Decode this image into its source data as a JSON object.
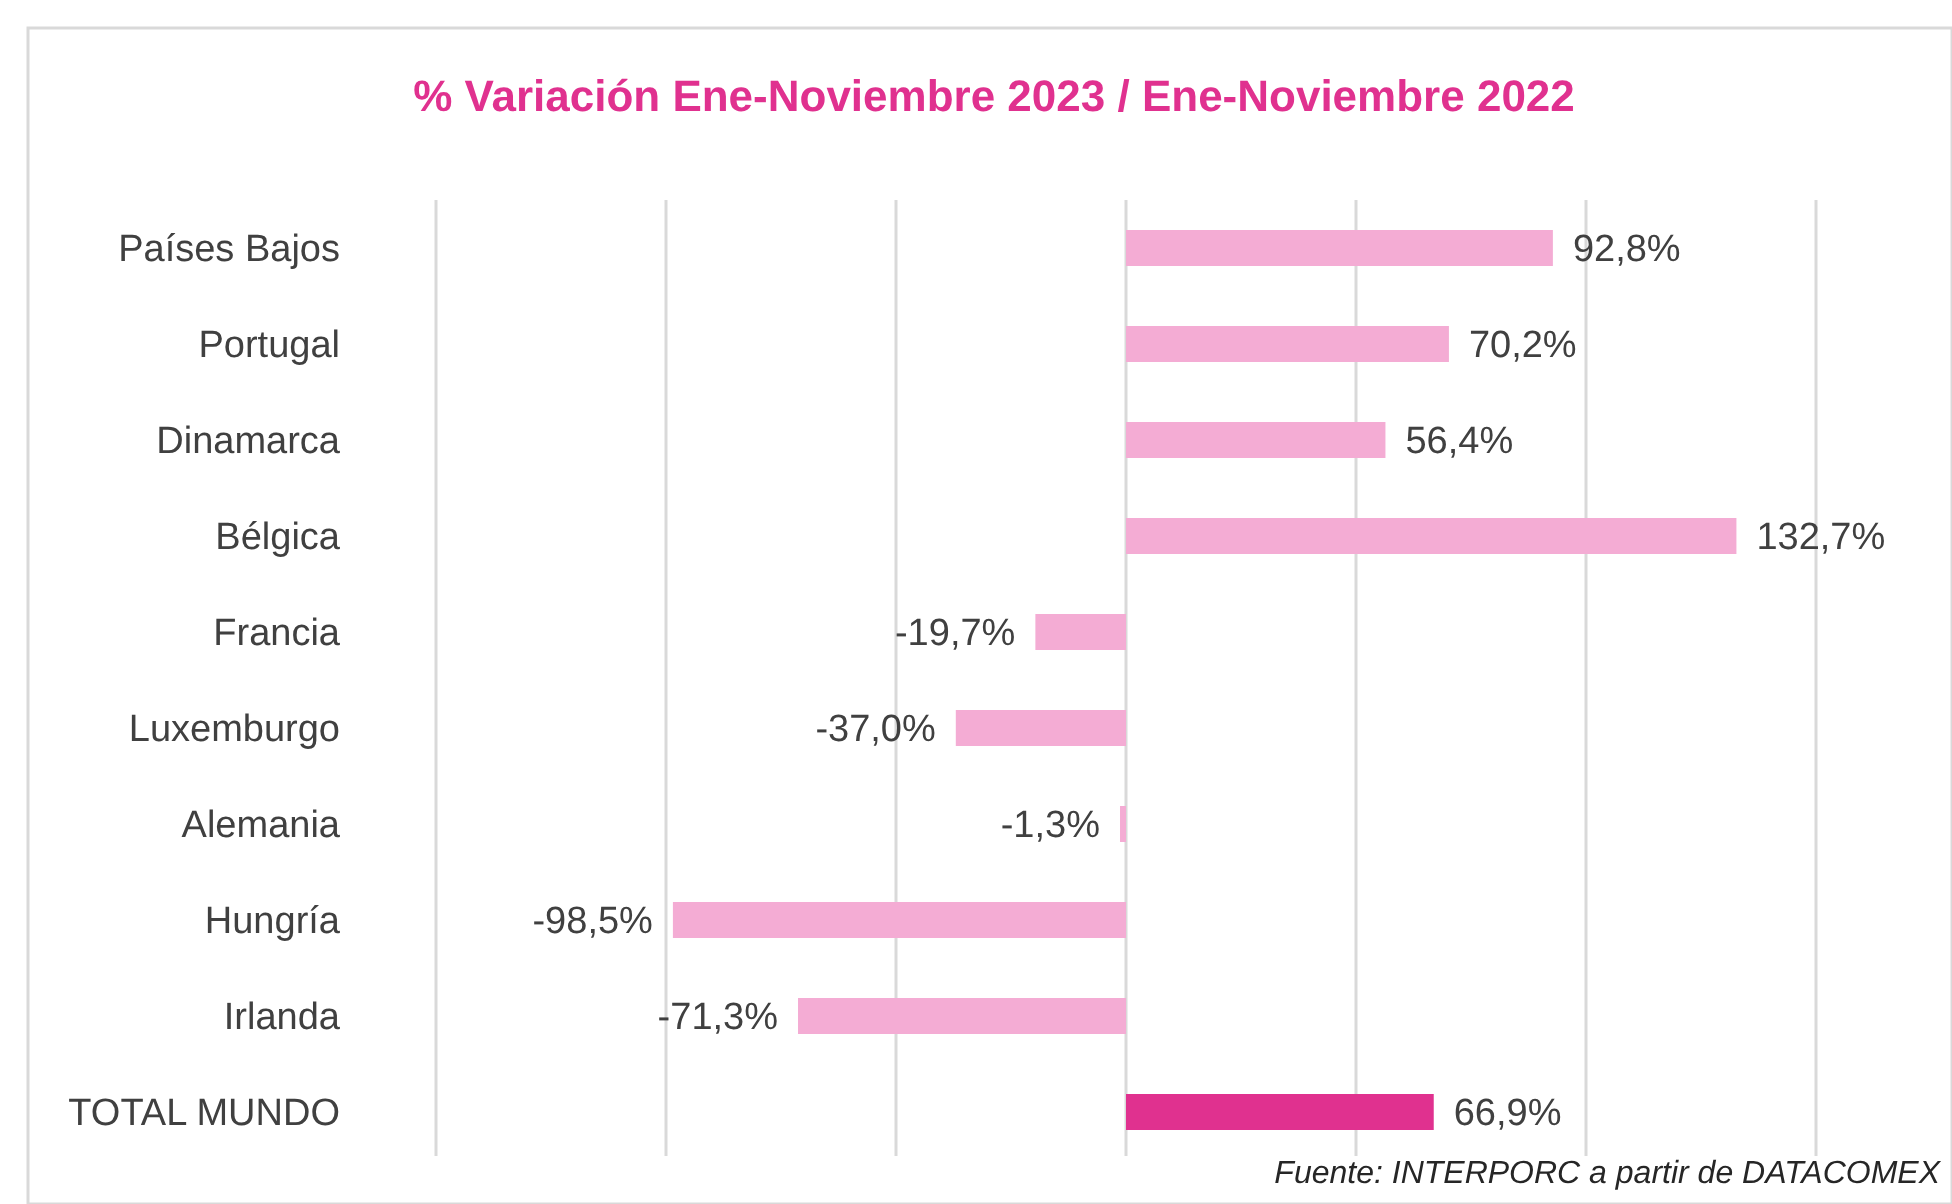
{
  "chart_data": {
    "type": "bar",
    "orientation": "horizontal",
    "title": "% Variación Ene-Noviembre 2023 / Ene-Noviembre 2022",
    "categories": [
      "Países Bajos",
      "Portugal",
      "Dinamarca",
      "Bélgica",
      "Francia",
      "Luxemburgo",
      "Alemania",
      "Hungría",
      "Irlanda",
      "TOTAL MUNDO"
    ],
    "values": [
      92.8,
      70.2,
      56.4,
      132.7,
      -19.7,
      -37.0,
      -1.3,
      -98.5,
      -71.3,
      66.9
    ],
    "value_labels": [
      "92,8%",
      "70,2%",
      "56,4%",
      "132,7%",
      "-19,7%",
      "-37,0%",
      "-1,3%",
      "-98,5%",
      "-71,3%",
      "66,9%"
    ],
    "colors": [
      "#f4acd4",
      "#f4acd4",
      "#f4acd4",
      "#f4acd4",
      "#f4acd4",
      "#f4acd4",
      "#f4acd4",
      "#f4acd4",
      "#f4acd4",
      "#e0318f"
    ],
    "xlim": [
      -150,
      150
    ],
    "xticks": [
      {
        "value": -150,
        "label": null
      },
      {
        "value": -100,
        "label": null
      },
      {
        "value": -50,
        "label": null
      },
      {
        "value": 0,
        "label": null
      },
      {
        "value": 50,
        "label": null
      },
      {
        "value": 100,
        "label": null
      },
      {
        "value": 150,
        "label": null
      }
    ],
    "grid": "x",
    "tick_labels": "y",
    "annotations": [
      "Fuente: INTERPORC  a partir de DATACOMEX"
    ]
  }
}
